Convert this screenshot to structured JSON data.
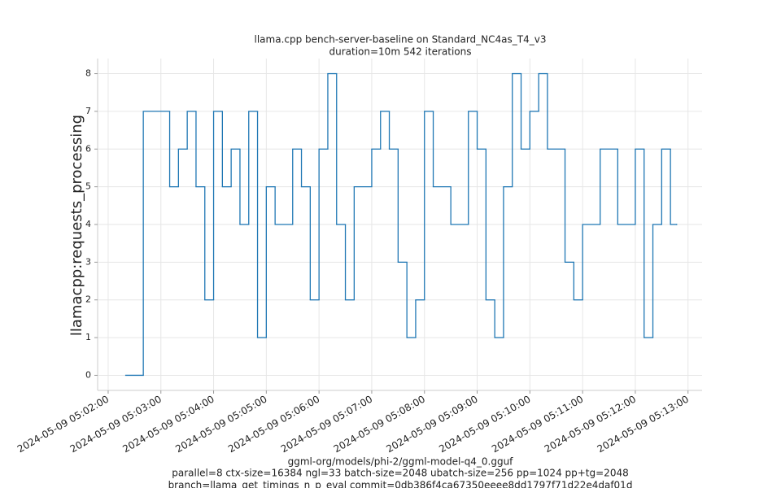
{
  "chart_data": {
    "type": "step",
    "title": "llama.cpp bench-server-baseline on Standard_NC4as_T4_v3",
    "subtitle": "duration=10m 542 iterations",
    "ylabel": "llamacpp:requests_processing",
    "xlabel_lines": [
      "ggml-org/models/phi-2/ggml-model-q4_0.gguf",
      "parallel=8 ctx-size=16384 ngl=33 batch-size=2048 ubatch-size=256 pp=1024 pp+tg=2048",
      "branch=llama_get_timings_n_p_eval commit=0db386f4ca67350eeee8dd1797f71d22e4daf01d"
    ],
    "color": "#1f77b4",
    "grid": true,
    "x": [
      "2024-05-09 05:02:20",
      "2024-05-09 05:02:40",
      "2024-05-09 05:03:10",
      "2024-05-09 05:03:20",
      "2024-05-09 05:03:30",
      "2024-05-09 05:03:40",
      "2024-05-09 05:03:50",
      "2024-05-09 05:04:00",
      "2024-05-09 05:04:10",
      "2024-05-09 05:04:20",
      "2024-05-09 05:04:30",
      "2024-05-09 05:04:40",
      "2024-05-09 05:04:50",
      "2024-05-09 05:05:00",
      "2024-05-09 05:05:10",
      "2024-05-09 05:05:30",
      "2024-05-09 05:05:40",
      "2024-05-09 05:05:50",
      "2024-05-09 05:06:00",
      "2024-05-09 05:06:10",
      "2024-05-09 05:06:20",
      "2024-05-09 05:06:30",
      "2024-05-09 05:06:40",
      "2024-05-09 05:07:00",
      "2024-05-09 05:07:10",
      "2024-05-09 05:07:20",
      "2024-05-09 05:07:30",
      "2024-05-09 05:07:40",
      "2024-05-09 05:07:50",
      "2024-05-09 05:08:00",
      "2024-05-09 05:08:10",
      "2024-05-09 05:08:30",
      "2024-05-09 05:08:50",
      "2024-05-09 05:09:00",
      "2024-05-09 05:09:10",
      "2024-05-09 05:09:20",
      "2024-05-09 05:09:30",
      "2024-05-09 05:09:40",
      "2024-05-09 05:09:50",
      "2024-05-09 05:10:00",
      "2024-05-09 05:10:10",
      "2024-05-09 05:10:20",
      "2024-05-09 05:10:40",
      "2024-05-09 05:10:50",
      "2024-05-09 05:11:00",
      "2024-05-09 05:11:20",
      "2024-05-09 05:11:40",
      "2024-05-09 05:12:00",
      "2024-05-09 05:12:10",
      "2024-05-09 05:12:20",
      "2024-05-09 05:12:30",
      "2024-05-09 05:12:40",
      "2024-05-09 05:12:47"
    ],
    "values": [
      0,
      7,
      5,
      6,
      7,
      5,
      2,
      7,
      5,
      6,
      4,
      7,
      1,
      5,
      4,
      6,
      5,
      2,
      6,
      8,
      4,
      2,
      5,
      6,
      7,
      6,
      3,
      1,
      2,
      7,
      5,
      4,
      7,
      6,
      2,
      1,
      5,
      8,
      6,
      7,
      8,
      6,
      3,
      2,
      4,
      6,
      4,
      6,
      1,
      4,
      6,
      4,
      4
    ],
    "xlim": [
      "2024-05-09 05:01:48",
      "2024-05-09 05:13:16"
    ],
    "xticks": [
      "2024-05-09 05:02:00",
      "2024-05-09 05:03:00",
      "2024-05-09 05:04:00",
      "2024-05-09 05:05:00",
      "2024-05-09 05:06:00",
      "2024-05-09 05:07:00",
      "2024-05-09 05:08:00",
      "2024-05-09 05:09:00",
      "2024-05-09 05:10:00",
      "2024-05-09 05:11:00",
      "2024-05-09 05:12:00",
      "2024-05-09 05:13:00"
    ],
    "ylim": [
      -0.4,
      8.4
    ],
    "yticks": [
      0,
      1,
      2,
      3,
      4,
      5,
      6,
      7,
      8
    ]
  }
}
